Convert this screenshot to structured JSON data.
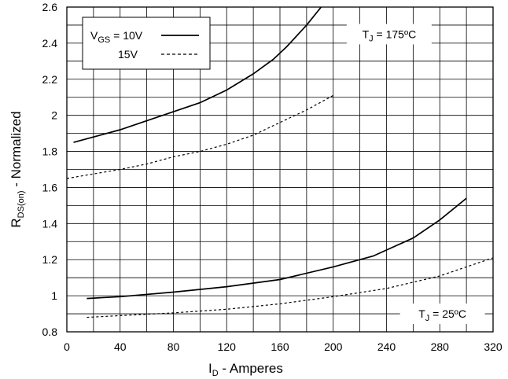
{
  "chart_data": {
    "type": "line",
    "xlabel": {
      "main": "I",
      "sub": "D",
      "rest": " - Amperes"
    },
    "ylabel": {
      "main": "R",
      "sub": "DS(on)",
      "rest": " - Normalized"
    },
    "xlim": [
      0,
      320
    ],
    "ylim": [
      0.8,
      2.6
    ],
    "xticks": [
      0,
      40,
      80,
      120,
      160,
      200,
      240,
      280,
      320
    ],
    "yticks": [
      0.8,
      1,
      1.2,
      1.4,
      1.6,
      1.8,
      2,
      2.2,
      2.4,
      2.6
    ],
    "grid": true,
    "legend": {
      "placement": "top-left",
      "entries": [
        {
          "prefix": "V",
          "sub": "GS",
          "rest": " = 10V",
          "style": "solid"
        },
        {
          "prefix": "",
          "sub": "",
          "rest": "15V",
          "style": "dashed"
        }
      ]
    },
    "annotations": [
      {
        "main": "T",
        "sub": "J",
        "rest": " = 175ºC",
        "x": 242,
        "y": 2.45
      },
      {
        "main": "T",
        "sub": "J",
        "rest": " = 25ºC",
        "x": 282,
        "y": 0.9
      }
    ],
    "series": [
      {
        "style": "solid",
        "x": [
          5,
          20,
          40,
          60,
          80,
          100,
          120,
          140,
          155,
          165,
          180,
          192
        ],
        "y": [
          1.85,
          1.88,
          1.92,
          1.97,
          2.02,
          2.07,
          2.14,
          2.23,
          2.31,
          2.38,
          2.5,
          2.61
        ]
      },
      {
        "style": "dashed",
        "x": [
          0,
          20,
          40,
          60,
          80,
          100,
          120,
          140,
          160,
          180,
          200
        ],
        "y": [
          1.65,
          1.675,
          1.7,
          1.73,
          1.77,
          1.8,
          1.84,
          1.89,
          1.96,
          2.03,
          2.11
        ]
      },
      {
        "style": "solid",
        "x": [
          15,
          40,
          80,
          120,
          160,
          200,
          230,
          260,
          280,
          300
        ],
        "y": [
          0.985,
          0.995,
          1.02,
          1.05,
          1.09,
          1.16,
          1.22,
          1.32,
          1.42,
          1.54
        ]
      },
      {
        "style": "dashed",
        "x": [
          15,
          40,
          80,
          120,
          160,
          200,
          240,
          280,
          320
        ],
        "y": [
          0.88,
          0.89,
          0.905,
          0.925,
          0.955,
          0.995,
          1.04,
          1.11,
          1.21
        ]
      }
    ]
  }
}
